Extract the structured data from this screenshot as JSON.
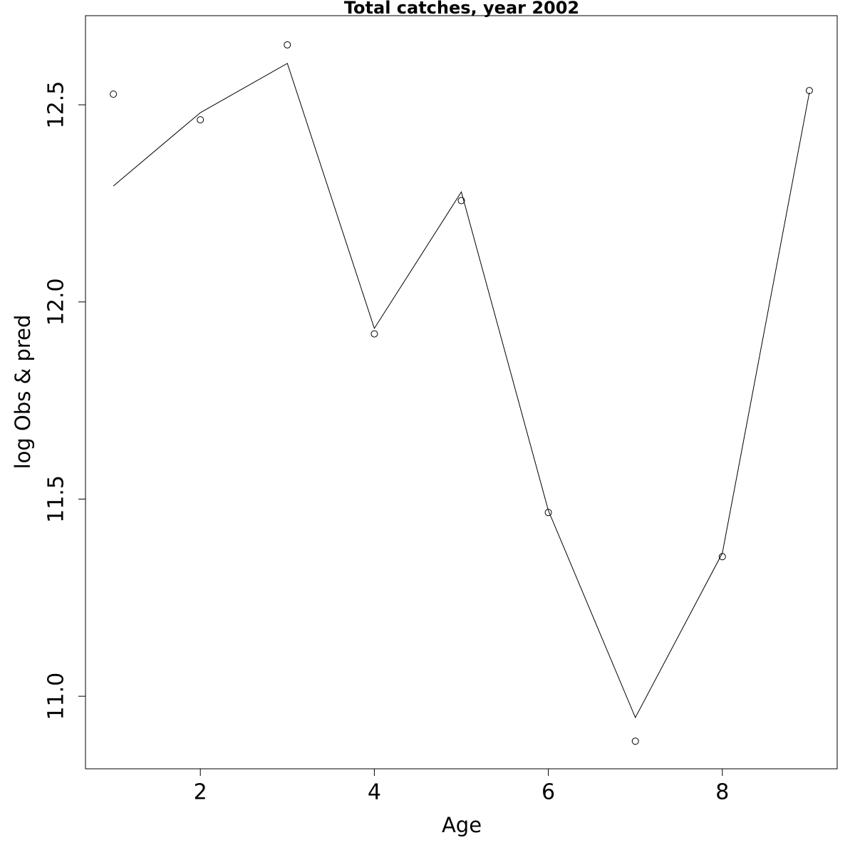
{
  "chart_data": {
    "type": "line",
    "title": "Total catches, year 2002",
    "x_label": "Age",
    "y_label": "log Obs & pred",
    "x": [
      1,
      2,
      3,
      4,
      5,
      6,
      7,
      8,
      9
    ],
    "series": [
      {
        "style": "points",
        "color": "#000000",
        "values": [
          12.527,
          12.462,
          12.652,
          11.919,
          12.257,
          11.466,
          10.886,
          11.354,
          12.536
        ]
      },
      {
        "style": "line",
        "color": "#000000",
        "values": [
          12.294,
          12.48,
          12.605,
          11.933,
          12.279,
          11.471,
          10.946,
          11.363,
          12.531
        ]
      }
    ],
    "xlim": [
      0.68,
      9.32
    ],
    "ylim": [
      10.816,
      12.726
    ],
    "xticks": [
      2,
      4,
      6,
      8
    ],
    "yticks": [
      {
        "value": 11,
        "label": "11.0"
      },
      11.5,
      {
        "value": 12,
        "label": "12.0"
      },
      12.5
    ],
    "grid": false
  }
}
